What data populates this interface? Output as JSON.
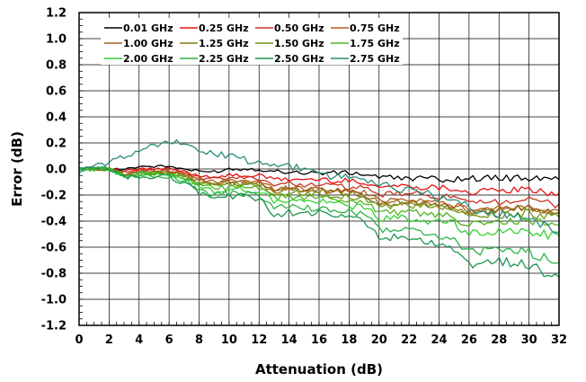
{
  "chart_data": {
    "type": "line",
    "title": "",
    "xlabel": "Attenuation (dB)",
    "ylabel": "Error (dB)",
    "xlim": [
      0,
      32
    ],
    "ylim": [
      -1.2,
      1.2
    ],
    "xticks": [
      "0",
      "2",
      "4",
      "6",
      "8",
      "10",
      "12",
      "14",
      "16",
      "18",
      "20",
      "22",
      "24",
      "26",
      "28",
      "30",
      "32"
    ],
    "yticks": [
      "1.2",
      "1.0",
      "0.8",
      "0.6",
      "0.4",
      "0.2",
      "0.0",
      "-0.2",
      "-0.4",
      "-0.6",
      "-0.8",
      "-1.0",
      "-1.2"
    ],
    "grid": true,
    "legend_position": "top-left",
    "x": [
      0,
      1,
      2,
      3,
      4,
      5,
      6,
      7,
      8,
      9,
      10,
      11,
      12,
      13,
      14,
      15,
      16,
      17,
      18,
      19,
      20,
      21,
      22,
      23,
      24,
      25,
      26,
      27,
      28,
      29,
      30,
      31,
      32
    ],
    "series": [
      {
        "name": "0.01 GHz",
        "color": "#000000",
        "values": [
          0.0,
          0.0,
          0.0,
          0.0,
          0.02,
          0.02,
          0.02,
          0.0,
          -0.02,
          -0.02,
          0.0,
          0.0,
          0.0,
          -0.02,
          -0.02,
          -0.03,
          -0.03,
          -0.03,
          -0.03,
          -0.04,
          -0.06,
          -0.07,
          -0.07,
          -0.07,
          -0.08,
          -0.08,
          -0.07,
          -0.07,
          -0.07,
          -0.07,
          -0.07,
          -0.08,
          -0.08
        ]
      },
      {
        "name": "0.25 GHz",
        "color": "#e81010",
        "values": [
          0.0,
          0.0,
          0.0,
          -0.02,
          0.0,
          0.0,
          0.0,
          -0.02,
          -0.05,
          -0.06,
          -0.05,
          -0.05,
          -0.05,
          -0.08,
          -0.08,
          -0.08,
          -0.08,
          -0.09,
          -0.09,
          -0.1,
          -0.14,
          -0.13,
          -0.13,
          -0.14,
          -0.14,
          -0.15,
          -0.18,
          -0.17,
          -0.17,
          -0.16,
          -0.16,
          -0.18,
          -0.19
        ]
      },
      {
        "name": "0.50 GHz",
        "color": "#c8321e",
        "values": [
          0.0,
          0.0,
          0.0,
          -0.03,
          -0.01,
          -0.01,
          -0.01,
          -0.03,
          -0.07,
          -0.08,
          -0.07,
          -0.07,
          -0.07,
          -0.12,
          -0.11,
          -0.12,
          -0.12,
          -0.13,
          -0.14,
          -0.15,
          -0.2,
          -0.19,
          -0.19,
          -0.2,
          -0.21,
          -0.22,
          -0.27,
          -0.26,
          -0.25,
          -0.24,
          -0.24,
          -0.26,
          -0.27
        ]
      },
      {
        "name": "0.75 GHz",
        "color": "#b45a1e",
        "values": [
          0.0,
          0.0,
          0.0,
          -0.04,
          -0.02,
          -0.02,
          -0.02,
          -0.04,
          -0.08,
          -0.1,
          -0.09,
          -0.09,
          -0.1,
          -0.15,
          -0.14,
          -0.15,
          -0.15,
          -0.16,
          -0.17,
          -0.18,
          -0.24,
          -0.23,
          -0.23,
          -0.24,
          -0.26,
          -0.27,
          -0.32,
          -0.31,
          -0.3,
          -0.29,
          -0.29,
          -0.31,
          -0.32
        ]
      },
      {
        "name": "1.00 GHz",
        "color": "#a0641e",
        "values": [
          0.0,
          0.0,
          0.0,
          -0.04,
          -0.03,
          -0.03,
          -0.02,
          -0.05,
          -0.09,
          -0.11,
          -0.1,
          -0.1,
          -0.11,
          -0.16,
          -0.15,
          -0.16,
          -0.16,
          -0.17,
          -0.18,
          -0.19,
          -0.26,
          -0.25,
          -0.25,
          -0.26,
          -0.27,
          -0.28,
          -0.33,
          -0.32,
          -0.31,
          -0.3,
          -0.3,
          -0.32,
          -0.33
        ]
      },
      {
        "name": "1.25 GHz",
        "color": "#8c7814",
        "values": [
          0.0,
          0.0,
          0.0,
          -0.04,
          -0.03,
          -0.03,
          -0.02,
          -0.05,
          -0.1,
          -0.12,
          -0.11,
          -0.11,
          -0.12,
          -0.17,
          -0.16,
          -0.17,
          -0.17,
          -0.18,
          -0.19,
          -0.2,
          -0.27,
          -0.26,
          -0.26,
          -0.27,
          -0.28,
          -0.29,
          -0.34,
          -0.33,
          -0.32,
          -0.31,
          -0.31,
          -0.33,
          -0.34
        ]
      },
      {
        "name": "1.50 GHz",
        "color": "#6e9614",
        "values": [
          0.0,
          0.0,
          0.0,
          -0.04,
          -0.03,
          -0.03,
          -0.03,
          -0.06,
          -0.11,
          -0.13,
          -0.12,
          -0.12,
          -0.13,
          -0.19,
          -0.18,
          -0.19,
          -0.19,
          -0.2,
          -0.21,
          -0.22,
          -0.29,
          -0.28,
          -0.28,
          -0.29,
          -0.3,
          -0.31,
          -0.37,
          -0.36,
          -0.35,
          -0.34,
          -0.34,
          -0.36,
          -0.37
        ]
      },
      {
        "name": "1.75 GHz",
        "color": "#50b41e",
        "values": [
          0.0,
          0.0,
          0.0,
          -0.05,
          -0.04,
          -0.04,
          -0.03,
          -0.07,
          -0.12,
          -0.15,
          -0.14,
          -0.14,
          -0.15,
          -0.22,
          -0.21,
          -0.22,
          -0.22,
          -0.23,
          -0.24,
          -0.25,
          -0.33,
          -0.33,
          -0.33,
          -0.34,
          -0.36,
          -0.37,
          -0.43,
          -0.42,
          -0.41,
          -0.4,
          -0.4,
          -0.42,
          -0.43
        ]
      },
      {
        "name": "2.00 GHz",
        "color": "#32d232",
        "values": [
          0.0,
          0.0,
          0.0,
          -0.05,
          -0.04,
          -0.04,
          -0.04,
          -0.08,
          -0.14,
          -0.17,
          -0.16,
          -0.16,
          -0.17,
          -0.25,
          -0.24,
          -0.25,
          -0.25,
          -0.27,
          -0.28,
          -0.29,
          -0.38,
          -0.38,
          -0.38,
          -0.39,
          -0.41,
          -0.42,
          -0.5,
          -0.49,
          -0.48,
          -0.47,
          -0.48,
          -0.5,
          -0.52
        ]
      },
      {
        "name": "2.25 GHz",
        "color": "#28b446",
        "values": [
          0.0,
          0.0,
          0.0,
          -0.05,
          -0.05,
          -0.05,
          -0.05,
          -0.09,
          -0.16,
          -0.2,
          -0.19,
          -0.19,
          -0.2,
          -0.3,
          -0.29,
          -0.3,
          -0.3,
          -0.32,
          -0.33,
          -0.35,
          -0.46,
          -0.47,
          -0.47,
          -0.49,
          -0.52,
          -0.54,
          -0.64,
          -0.63,
          -0.62,
          -0.62,
          -0.64,
          -0.68,
          -0.72
        ]
      },
      {
        "name": "2.50 GHz",
        "color": "#1e9650",
        "values": [
          0.0,
          0.0,
          0.0,
          -0.06,
          -0.06,
          -0.06,
          -0.06,
          -0.1,
          -0.18,
          -0.22,
          -0.21,
          -0.21,
          -0.23,
          -0.35,
          -0.33,
          -0.34,
          -0.34,
          -0.36,
          -0.37,
          -0.4,
          -0.52,
          -0.53,
          -0.54,
          -0.56,
          -0.6,
          -0.62,
          -0.74,
          -0.72,
          -0.71,
          -0.72,
          -0.74,
          -0.79,
          -0.83
        ]
      },
      {
        "name": "2.75 GHz",
        "color": "#288c78",
        "values": [
          -0.02,
          0.02,
          0.05,
          0.1,
          0.14,
          0.18,
          0.22,
          0.18,
          0.14,
          0.12,
          0.1,
          0.07,
          0.04,
          0.02,
          0.02,
          0.0,
          -0.04,
          -0.06,
          -0.06,
          -0.07,
          -0.13,
          -0.14,
          -0.16,
          -0.19,
          -0.22,
          -0.24,
          -0.3,
          -0.33,
          -0.35,
          -0.35,
          -0.38,
          -0.42,
          -0.48
        ]
      }
    ]
  }
}
